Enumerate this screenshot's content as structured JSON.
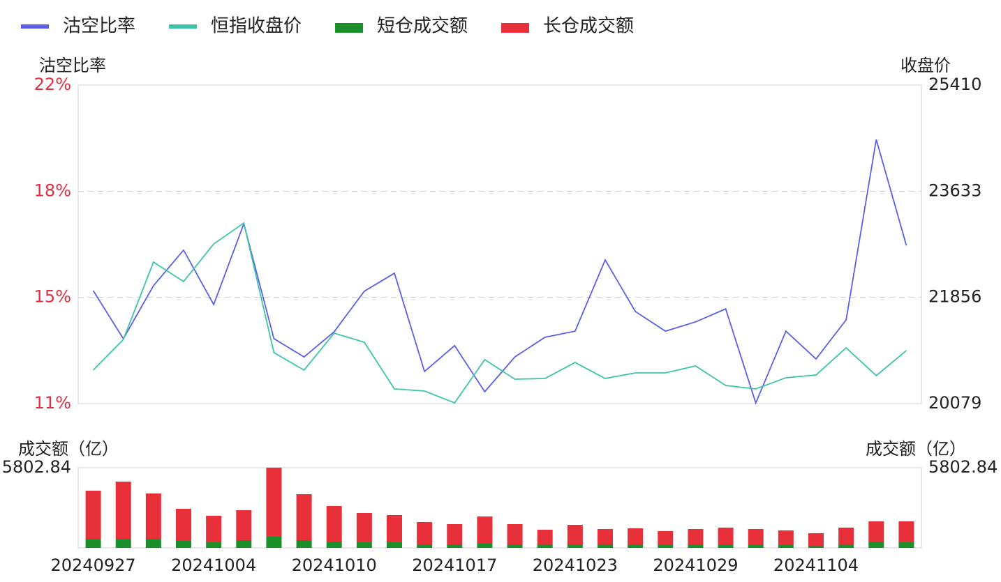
{
  "chart_data": [
    {
      "type": "line",
      "ylabel": "沽空比率",
      "y2label": "收盘价",
      "ylim": [
        11,
        22
      ],
      "yticks": [
        {
          "value": 11,
          "label": "11%"
        },
        {
          "value": 14.67,
          "label": "15%"
        },
        {
          "value": 18.33,
          "label": "18%"
        },
        {
          "value": 22,
          "label": "22%"
        }
      ],
      "y2lim": [
        20079,
        25410
      ],
      "y2ticks": [
        20079,
        21856,
        23633,
        25410
      ],
      "grid": true,
      "series": [
        {
          "name": "沽空比率",
          "color": "#5b5fe8",
          "values": [
            14.9,
            13.24,
            15.07,
            16.3,
            14.42,
            17.21,
            13.24,
            12.61,
            13.48,
            14.88,
            15.5,
            12.11,
            13.0,
            11.41,
            12.61,
            13.29,
            13.5,
            15.96,
            14.18,
            13.5,
            13.82,
            14.27,
            11.02,
            13.5,
            12.54,
            13.89,
            20.12,
            16.46
          ]
        },
        {
          "name": "恒指收盘价",
          "color": "#3cc4a8",
          "axis": "y2",
          "values": [
            20639,
            21152,
            22447,
            22121,
            22750,
            23101,
            20931,
            20639,
            21257,
            21106,
            20324,
            20289,
            20091,
            20814,
            20487,
            20499,
            20767,
            20499,
            20592,
            20592,
            20709,
            20382,
            20324,
            20511,
            20557,
            21012,
            20546,
            20966
          ]
        }
      ]
    },
    {
      "type": "bar",
      "stacked": true,
      "ylabel": "成交额（亿）",
      "ylim": [
        0,
        5802.84
      ],
      "yticks": [
        5802.84
      ],
      "categories": [
        "20240927",
        null,
        null,
        null,
        "20241004",
        null,
        null,
        null,
        "20241010",
        null,
        null,
        null,
        "20241017",
        null,
        null,
        null,
        "20241023",
        null,
        null,
        null,
        "20241029",
        null,
        null,
        null,
        "20241104",
        null,
        null,
        null
      ],
      "series": [
        {
          "name": "短仓成交额",
          "color": "#1a8f2a",
          "values": [
            656,
            656,
            656,
            505,
            404,
            555,
            807,
            555,
            454,
            404,
            404,
            252,
            252,
            303,
            252,
            252,
            252,
            252,
            252,
            202,
            252,
            252,
            202,
            202,
            151,
            252,
            454,
            404
          ]
        },
        {
          "name": "长仓成交额",
          "color": "#e8303a",
          "values": [
            3482,
            4138,
            3280,
            2321,
            1917,
            2170,
            4996,
            3330,
            2573,
            2119,
            1968,
            1615,
            1463,
            1968,
            1463,
            1060,
            1413,
            1110,
            1161,
            1009,
            1110,
            1211,
            1161,
            1060,
            908,
            1211,
            1463,
            1514
          ]
        }
      ]
    }
  ]
}
